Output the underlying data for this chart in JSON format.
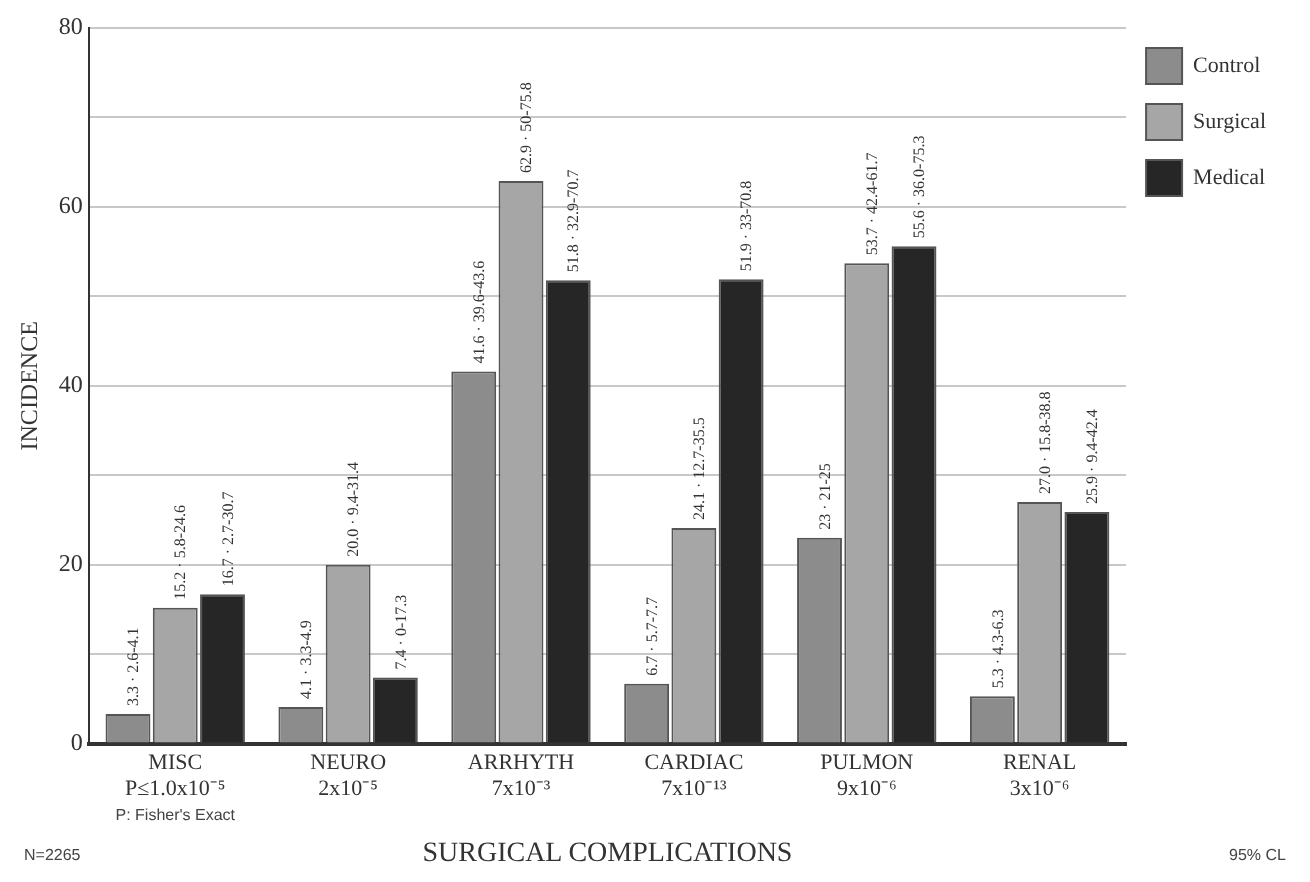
{
  "chart_data": {
    "type": "bar",
    "xlabel": "SURGICAL COMPLICATIONS",
    "ylabel": "INCIDENCE",
    "categories": [
      "MISC\nP≤1.0x10⁻⁵",
      "NEURO\n2x10⁻⁵",
      "ARRHYTH\n7x10⁻³",
      "CARDIAC\n7x10⁻¹³",
      "PULMON\n9x10⁻⁶",
      "RENAL\n3x10⁻⁶"
    ],
    "series": [
      {
        "name": "Control",
        "color": "#8c8c8c",
        "values": [
          3.3,
          4.1,
          41.6,
          6.7,
          23,
          5.3
        ],
        "value_labels": [
          "3.3 · 2.6-4.1",
          "4.1 · 3.3-4.9",
          "41.6 · 39.6-43.6",
          "6.7 · 5.7-7.7",
          "23 · 21-25",
          "5.3 · 4.3-6.3"
        ]
      },
      {
        "name": "Surgical",
        "color": "#a6a6a6",
        "values": [
          15.2,
          20.0,
          62.9,
          24.1,
          53.7,
          27.0
        ],
        "value_labels": [
          "15.2 · 5.8-24.6",
          "20.0 · 9.4-31.4",
          "62.9 · 50-75.8",
          "24.1 · 12.7-35.5",
          "53.7 · 42.4-61.7",
          "27.0 · 15.8-38.8"
        ]
      },
      {
        "name": "Medical",
        "color": "#262626",
        "values": [
          16.7,
          7.4,
          51.8,
          51.9,
          55.6,
          25.9
        ],
        "value_labels": [
          "16.7 · 2.7-30.7",
          "7.4 · 0-17.3",
          "51.8 · 32.9-70.7",
          "51.9 · 33-70.8",
          "55.6 · 36.0-75.3",
          "25.9 · 9.4-42.4"
        ]
      }
    ],
    "ylim": [
      0,
      80
    ],
    "yticks": [
      0,
      {
        "value": 10,
        "label": null
      },
      20,
      {
        "value": 30,
        "label": null
      },
      40,
      {
        "value": 50,
        "label": null
      },
      60,
      {
        "value": 70,
        "label": null
      },
      80
    ],
    "grid": "y",
    "legend": "top right",
    "annotations": [
      "P: Fisher's Exact",
      "N=2265",
      "95% CL"
    ]
  }
}
